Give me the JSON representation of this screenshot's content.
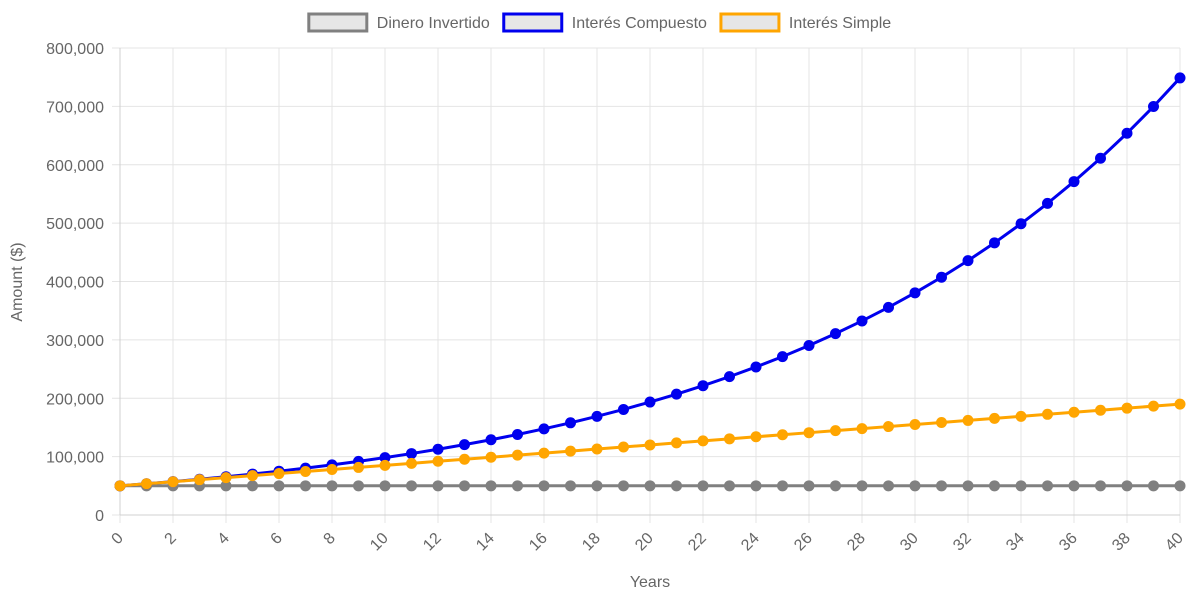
{
  "chart_data": {
    "type": "line",
    "xlabel": "Years",
    "ylabel": "Amount ($)",
    "xlim": [
      0,
      40
    ],
    "ylim": [
      0,
      800000
    ],
    "x_ticks": [
      "0",
      "2",
      "4",
      "6",
      "8",
      "10",
      "12",
      "14",
      "16",
      "18",
      "20",
      "22",
      "24",
      "26",
      "28",
      "30",
      "32",
      "34",
      "36",
      "38",
      "40"
    ],
    "y_ticks": [
      "0",
      "100,000",
      "200,000",
      "300,000",
      "400,000",
      "500,000",
      "600,000",
      "700,000",
      "800,000"
    ],
    "grid": true,
    "legend_position": "top-center",
    "x": [
      0,
      1,
      2,
      3,
      4,
      5,
      6,
      7,
      8,
      9,
      10,
      11,
      12,
      13,
      14,
      15,
      16,
      17,
      18,
      19,
      20,
      21,
      22,
      23,
      24,
      25,
      26,
      27,
      28,
      29,
      30,
      31,
      32,
      33,
      34,
      35,
      36,
      37,
      38,
      39,
      40
    ],
    "series": [
      {
        "name": "Dinero Invertido",
        "color": "#808080",
        "values": [
          50000,
          50000,
          50000,
          50000,
          50000,
          50000,
          50000,
          50000,
          50000,
          50000,
          50000,
          50000,
          50000,
          50000,
          50000,
          50000,
          50000,
          50000,
          50000,
          50000,
          50000,
          50000,
          50000,
          50000,
          50000,
          50000,
          50000,
          50000,
          50000,
          50000,
          50000,
          50000,
          50000,
          50000,
          50000,
          50000,
          50000,
          50000,
          50000,
          50000,
          50000
        ]
      },
      {
        "name": "Interés Compuesto",
        "color": "#0000ee",
        "values": [
          50000,
          53500,
          57245,
          61252,
          65540,
          70128,
          75037,
          80289,
          85909,
          91923,
          98358,
          105243,
          112610,
          120492,
          128927,
          137952,
          147608,
          157941,
          168997,
          180826,
          193484,
          207028,
          221520,
          237026,
          253618,
          271371,
          290367,
          310693,
          332441,
          355712,
          380612,
          407255,
          435763,
          466266,
          498905,
          533828,
          571196,
          611180,
          653962,
          699740,
          748722
        ]
      },
      {
        "name": "Interés Simple",
        "color": "#ffa500",
        "values": [
          50000,
          53500,
          57000,
          60500,
          64000,
          67500,
          71000,
          74500,
          78000,
          81500,
          85000,
          88500,
          92000,
          95500,
          99000,
          102500,
          106000,
          109500,
          113000,
          116500,
          120000,
          123500,
          127000,
          130500,
          134000,
          137500,
          141000,
          144500,
          148000,
          151500,
          155000,
          158500,
          162000,
          165500,
          169000,
          172500,
          176000,
          179500,
          183000,
          186500,
          190000
        ]
      }
    ]
  }
}
